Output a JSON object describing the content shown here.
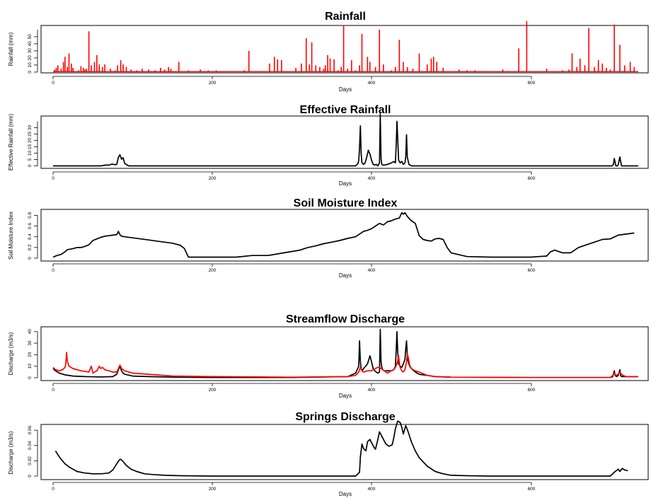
{
  "chart_data": [
    {
      "type": "line",
      "title": "Rainfall",
      "xlabel": "Days",
      "ylabel": "Rainfall (mm)",
      "xlim": [
        0,
        735
      ],
      "ylim": [
        0,
        60
      ],
      "xticks": [
        0,
        200,
        400,
        600
      ],
      "yticks": [
        0,
        10,
        20,
        30,
        40,
        50
      ],
      "grid": false,
      "series": [
        {
          "color": "#ff0000",
          "style": "spikes",
          "baseline": 0.5,
          "x": [
            2,
            4,
            6,
            10,
            13,
            15,
            18,
            20,
            23,
            25,
            32,
            35,
            38,
            40,
            42,
            45,
            48,
            52,
            55,
            58,
            62,
            65,
            72,
            78,
            81,
            85,
            88,
            92,
            98,
            105,
            112,
            120,
            128,
            135,
            140,
            145,
            148,
            158,
            170,
            185,
            195,
            205,
            225,
            240,
            246,
            265,
            272,
            278,
            282,
            287,
            305,
            312,
            318,
            322,
            325,
            330,
            335,
            340,
            342,
            345,
            348,
            353,
            358,
            362,
            365,
            370,
            375,
            380,
            385,
            388,
            395,
            398,
            405,
            410,
            415,
            425,
            430,
            435,
            440,
            445,
            452,
            460,
            470,
            475,
            478,
            482,
            490,
            510,
            520,
            530,
            545,
            565,
            585,
            595,
            620,
            640,
            648,
            652,
            658,
            662,
            668,
            673,
            680,
            685,
            690,
            695,
            700,
            705,
            712,
            718,
            725,
            730
          ],
          "y": [
            3,
            5,
            8,
            4,
            12,
            18,
            6,
            22,
            10,
            5,
            2,
            7,
            5,
            3,
            4,
            48,
            8,
            12,
            20,
            9,
            6,
            9,
            4,
            2,
            8,
            14,
            9,
            6,
            3,
            2,
            4,
            3,
            2,
            5,
            3,
            6,
            4,
            12,
            2,
            3,
            2,
            2,
            1,
            2,
            25,
            1,
            10,
            18,
            15,
            14,
            5,
            10,
            40,
            9,
            35,
            8,
            6,
            4,
            8,
            20,
            16,
            15,
            2,
            6,
            55,
            4,
            14,
            2,
            8,
            45,
            18,
            12,
            6,
            50,
            9,
            2,
            6,
            38,
            12,
            6,
            4,
            22,
            9,
            16,
            18,
            12,
            5,
            3,
            2,
            2,
            1,
            3,
            28,
            60,
            4,
            2,
            3,
            22,
            6,
            16,
            8,
            52,
            6,
            14,
            10,
            5,
            3,
            56,
            32,
            8,
            12,
            6
          ]
        }
      ]
    },
    {
      "type": "line",
      "title": "Effective Rainfall",
      "xlabel": "Days",
      "ylabel": "Effective Rainfall (mm)",
      "xlim": [
        0,
        735
      ],
      "ylim": [
        0,
        35
      ],
      "xticks": [
        0,
        200,
        400,
        600
      ],
      "yticks": [
        0,
        5,
        10,
        15,
        20,
        25,
        30
      ],
      "grid": false,
      "series": [
        {
          "color": "#000000",
          "x": [
            0,
            60,
            66,
            70,
            74,
            78,
            80,
            82,
            84,
            86,
            88,
            90,
            95,
            375,
            380,
            383,
            384,
            385,
            386,
            387,
            388,
            390,
            392,
            394,
            396,
            398,
            400,
            402,
            404,
            406,
            408,
            410,
            411,
            412,
            413,
            414,
            416,
            420,
            425,
            428,
            430,
            431,
            432,
            433,
            434,
            436,
            438,
            440,
            442,
            443,
            444,
            445,
            447,
            450,
            700,
            702,
            704,
            705,
            707,
            709,
            710,
            712,
            714,
            715,
            717,
            720,
            735
          ],
          "y": [
            0,
            0,
            0.5,
            0.5,
            1.2,
            0.8,
            1,
            5.8,
            7.5,
            4.5,
            5.5,
            1.5,
            0,
            0,
            0,
            1.5,
            3.8,
            12,
            27,
            8,
            2,
            1,
            2,
            6,
            10.5,
            8,
            4,
            1,
            0.5,
            1,
            0,
            2,
            35,
            5,
            1,
            0.5,
            0.5,
            1,
            2,
            3,
            2,
            14,
            30,
            18,
            4,
            2,
            3,
            1,
            2,
            6,
            21,
            6,
            1,
            0,
            0,
            0,
            1,
            5,
            0,
            0,
            1,
            6,
            0,
            0,
            0,
            0,
            0
          ]
        }
      ]
    },
    {
      "type": "line",
      "title": "Soil Moisture Index",
      "xlabel": "Days",
      "ylabel": "Soil Moisture Index",
      "xlim": [
        0,
        735
      ],
      "ylim": [
        0,
        0.9
      ],
      "xticks": [
        0,
        200,
        400,
        600
      ],
      "yticks": [
        0.0,
        0.2,
        0.4,
        0.6,
        0.8
      ],
      "grid": false,
      "series": [
        {
          "color": "#000000",
          "x": [
            0,
            5,
            10,
            15,
            18,
            22,
            25,
            30,
            35,
            40,
            45,
            48,
            50,
            55,
            60,
            65,
            70,
            75,
            80,
            82,
            84,
            86,
            90,
            100,
            110,
            120,
            130,
            140,
            150,
            160,
            165,
            170,
            200,
            230,
            250,
            270,
            290,
            310,
            320,
            330,
            340,
            350,
            360,
            370,
            380,
            385,
            390,
            395,
            400,
            405,
            410,
            415,
            420,
            425,
            430,
            435,
            438,
            440,
            442,
            445,
            450,
            455,
            460,
            465,
            470,
            475,
            480,
            485,
            490,
            495,
            500,
            520,
            550,
            575,
            600,
            610,
            620,
            625,
            630,
            640,
            650,
            660,
            670,
            680,
            690,
            700,
            710,
            720,
            730
          ],
          "y": [
            0.02,
            0.05,
            0.07,
            0.12,
            0.16,
            0.17,
            0.18,
            0.2,
            0.2,
            0.22,
            0.25,
            0.3,
            0.33,
            0.36,
            0.39,
            0.41,
            0.42,
            0.43,
            0.44,
            0.5,
            0.44,
            0.41,
            0.4,
            0.38,
            0.36,
            0.34,
            0.32,
            0.3,
            0.28,
            0.24,
            0.18,
            0.02,
            0.02,
            0.02,
            0.05,
            0.05,
            0.1,
            0.15,
            0.2,
            0.23,
            0.27,
            0.3,
            0.33,
            0.37,
            0.4,
            0.45,
            0.5,
            0.52,
            0.55,
            0.6,
            0.65,
            0.62,
            0.68,
            0.7,
            0.73,
            0.75,
            0.85,
            0.82,
            0.85,
            0.78,
            0.7,
            0.65,
            0.42,
            0.35,
            0.33,
            0.32,
            0.36,
            0.37,
            0.35,
            0.2,
            0.1,
            0.03,
            0.02,
            0.02,
            0.02,
            0.03,
            0.04,
            0.12,
            0.15,
            0.1,
            0.1,
            0.2,
            0.25,
            0.3,
            0.35,
            0.36,
            0.43,
            0.45,
            0.47
          ]
        }
      ]
    },
    {
      "type": "line",
      "title": "Streamflow Discharge",
      "xlabel": "Days",
      "ylabel": "Discharge (m3/s)",
      "xlim": [
        0,
        735
      ],
      "ylim": [
        0,
        42
      ],
      "xticks": [
        0,
        200,
        400,
        600
      ],
      "yticks": [
        0,
        10,
        20,
        30,
        40
      ],
      "grid": false,
      "series": [
        {
          "color": "#000000",
          "x": [
            0,
            3,
            8,
            15,
            25,
            40,
            60,
            75,
            80,
            82,
            84,
            86,
            88,
            90,
            100,
            120,
            150,
            200,
            300,
            370,
            380,
            384,
            385,
            386,
            387,
            388,
            390,
            395,
            398,
            400,
            402,
            404,
            406,
            408,
            410,
            411,
            412,
            413,
            414,
            416,
            420,
            425,
            428,
            430,
            431,
            432,
            433,
            434,
            436,
            438,
            440,
            442,
            443,
            444,
            445,
            446,
            448,
            450,
            455,
            460,
            470,
            480,
            500,
            600,
            700,
            703,
            705,
            706,
            708,
            710,
            712,
            713,
            714,
            716,
            720,
            735
          ],
          "y": [
            8,
            6,
            4,
            2.5,
            1.5,
            1,
            0.7,
            1,
            3,
            7,
            10,
            6,
            4,
            3,
            1.5,
            1,
            0.5,
            0.2,
            0.2,
            1,
            4,
            10,
            32,
            14,
            8,
            6,
            8,
            12,
            19,
            14,
            8,
            6,
            5,
            4,
            5,
            42,
            14,
            9,
            7,
            6,
            6,
            6,
            7,
            10,
            24,
            40,
            22,
            12,
            10,
            9,
            12,
            16,
            25,
            32,
            20,
            14,
            10,
            8,
            5,
            3,
            2,
            1,
            0.5,
            0.2,
            0.2,
            1,
            6,
            2,
            1,
            2,
            7,
            2,
            1,
            1,
            1,
            1
          ]
        },
        {
          "color": "#ff0000",
          "x": [
            0,
            3,
            8,
            12,
            15,
            16,
            17,
            18,
            20,
            25,
            35,
            45,
            48,
            50,
            52,
            55,
            58,
            60,
            62,
            65,
            70,
            75,
            80,
            82,
            84,
            86,
            88,
            90,
            100,
            120,
            150,
            200,
            300,
            370,
            380,
            384,
            386,
            388,
            390,
            395,
            400,
            402,
            405,
            408,
            410,
            412,
            414,
            416,
            418,
            420,
            425,
            428,
            430,
            432,
            434,
            435,
            436,
            438,
            440,
            442,
            444,
            445,
            446,
            448,
            450,
            455,
            460,
            470,
            480,
            500,
            600,
            700,
            703,
            705,
            707,
            710,
            712,
            714,
            716,
            720,
            735
          ],
          "y": [
            9,
            7,
            6,
            7,
            9,
            12,
            22,
            14,
            10,
            8,
            6,
            5,
            10,
            4,
            5,
            6,
            10,
            8,
            9,
            7,
            6,
            5,
            5,
            8,
            11,
            8,
            7,
            6,
            4,
            3,
            1.5,
            1,
            0.5,
            1,
            2,
            5,
            9,
            6,
            5,
            6,
            6,
            7,
            8,
            9,
            9,
            8,
            7,
            6,
            5,
            4,
            6,
            7,
            9,
            12,
            19,
            13,
            9,
            6,
            5,
            7,
            14,
            21,
            18,
            11,
            8,
            6,
            5,
            2,
            1,
            0.5,
            0.2,
            0.2,
            2,
            4,
            2,
            3,
            5,
            3,
            2,
            1,
            1
          ]
        }
      ]
    },
    {
      "type": "line",
      "title": "Springs Discharge",
      "xlabel": "Days",
      "ylabel": "Discharge (m3/s)",
      "xlim": [
        0,
        735
      ],
      "ylim": [
        0,
        0.075
      ],
      "xticks": [
        0,
        200,
        400,
        600
      ],
      "yticks": [
        0.0,
        0.02,
        0.04,
        0.06
      ],
      "grid": false,
      "series": [
        {
          "color": "#000000",
          "x": [
            3,
            6,
            10,
            15,
            20,
            25,
            30,
            40,
            50,
            60,
            70,
            75,
            80,
            83,
            85,
            88,
            92,
            98,
            105,
            115,
            125,
            140,
            160,
            200,
            300,
            380,
            385,
            386,
            388,
            390,
            393,
            395,
            398,
            400,
            403,
            405,
            408,
            410,
            413,
            418,
            422,
            426,
            428,
            430,
            433,
            436,
            438,
            440,
            443,
            446,
            450,
            455,
            460,
            470,
            480,
            490,
            500,
            520,
            550,
            600,
            700,
            705,
            710,
            712,
            715,
            718,
            722
          ],
          "y": [
            0.033,
            0.028,
            0.022,
            0.016,
            0.012,
            0.009,
            0.006,
            0.004,
            0.003,
            0.003,
            0.004,
            0.008,
            0.016,
            0.021,
            0.022,
            0.019,
            0.014,
            0.009,
            0.006,
            0.003,
            0.002,
            0.001,
            0.0005,
            0,
            0,
            0,
            0.005,
            0.025,
            0.042,
            0.036,
            0.033,
            0.045,
            0.048,
            0.044,
            0.038,
            0.035,
            0.048,
            0.058,
            0.052,
            0.042,
            0.039,
            0.041,
            0.05,
            0.062,
            0.072,
            0.07,
            0.064,
            0.055,
            0.066,
            0.058,
            0.045,
            0.033,
            0.024,
            0.013,
            0.006,
            0.003,
            0.001,
            0.0005,
            0,
            0,
            0,
            0.005,
            0.009,
            0.006,
            0.01,
            0.008,
            0.007
          ]
        }
      ]
    }
  ]
}
